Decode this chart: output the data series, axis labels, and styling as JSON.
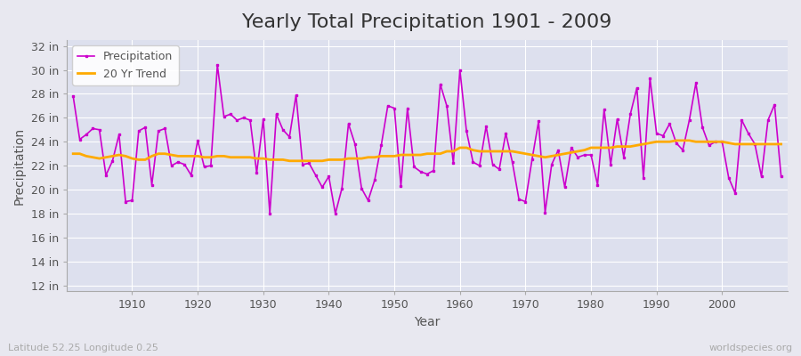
{
  "title": "Yearly Total Precipitation 1901 - 2009",
  "xlabel": "Year",
  "ylabel": "Precipitation",
  "years": [
    1901,
    1902,
    1903,
    1904,
    1905,
    1906,
    1907,
    1908,
    1909,
    1910,
    1911,
    1912,
    1913,
    1914,
    1915,
    1916,
    1917,
    1918,
    1919,
    1920,
    1921,
    1922,
    1923,
    1924,
    1925,
    1926,
    1927,
    1928,
    1929,
    1930,
    1931,
    1932,
    1933,
    1934,
    1935,
    1936,
    1937,
    1938,
    1939,
    1940,
    1941,
    1942,
    1943,
    1944,
    1945,
    1946,
    1947,
    1948,
    1949,
    1950,
    1951,
    1952,
    1953,
    1954,
    1955,
    1956,
    1957,
    1958,
    1959,
    1960,
    1961,
    1962,
    1963,
    1964,
    1965,
    1966,
    1967,
    1968,
    1969,
    1970,
    1971,
    1972,
    1973,
    1974,
    1975,
    1976,
    1977,
    1978,
    1979,
    1980,
    1981,
    1982,
    1983,
    1984,
    1985,
    1986,
    1987,
    1988,
    1989,
    1990,
    1991,
    1992,
    1993,
    1994,
    1995,
    1996,
    1997,
    1998,
    1999,
    2000,
    2001,
    2002,
    2003,
    2004,
    2005,
    2006,
    2007,
    2008,
    2009
  ],
  "precip": [
    27.8,
    24.2,
    24.6,
    25.1,
    25.0,
    21.2,
    22.4,
    24.6,
    19.0,
    19.1,
    24.9,
    25.2,
    20.4,
    24.9,
    25.1,
    22.0,
    22.3,
    22.1,
    21.2,
    24.1,
    21.9,
    22.0,
    30.4,
    26.1,
    26.3,
    25.8,
    26.0,
    25.8,
    21.4,
    25.9,
    18.0,
    26.3,
    25.0,
    24.4,
    27.9,
    22.1,
    22.2,
    21.2,
    20.2,
    21.1,
    18.0,
    20.1,
    25.5,
    23.8,
    20.1,
    19.1,
    20.8,
    23.7,
    27.0,
    26.8,
    20.3,
    26.8,
    21.9,
    21.5,
    21.3,
    21.6,
    28.8,
    27.0,
    22.2,
    30.0,
    24.9,
    22.3,
    22.0,
    25.3,
    22.1,
    21.7,
    24.7,
    22.3,
    19.2,
    19.0,
    22.5,
    25.7,
    18.1,
    22.1,
    23.3,
    20.2,
    23.5,
    22.7,
    22.9,
    22.9,
    20.4,
    26.7,
    22.1,
    25.9,
    22.7,
    26.3,
    28.5,
    21.0,
    29.3,
    24.7,
    24.5,
    25.5,
    23.9,
    23.3,
    25.8,
    28.9,
    25.2,
    23.7,
    24.0,
    24.0,
    21.0,
    19.7,
    25.8,
    24.7,
    23.8,
    21.1,
    25.8,
    27.1,
    21.1
  ],
  "trend": [
    23.0,
    23.0,
    22.8,
    22.7,
    22.6,
    22.7,
    22.8,
    22.9,
    22.8,
    22.6,
    22.5,
    22.5,
    22.8,
    23.0,
    23.0,
    22.9,
    22.8,
    22.8,
    22.8,
    22.8,
    22.7,
    22.7,
    22.8,
    22.8,
    22.7,
    22.7,
    22.7,
    22.7,
    22.6,
    22.6,
    22.5,
    22.5,
    22.5,
    22.4,
    22.4,
    22.4,
    22.4,
    22.4,
    22.4,
    22.5,
    22.5,
    22.5,
    22.6,
    22.6,
    22.6,
    22.7,
    22.7,
    22.8,
    22.8,
    22.8,
    22.9,
    22.9,
    22.9,
    22.9,
    23.0,
    23.0,
    23.0,
    23.2,
    23.2,
    23.5,
    23.5,
    23.3,
    23.2,
    23.2,
    23.2,
    23.2,
    23.2,
    23.2,
    23.1,
    23.0,
    22.9,
    22.8,
    22.7,
    22.8,
    22.9,
    23.0,
    23.1,
    23.2,
    23.3,
    23.5,
    23.5,
    23.5,
    23.5,
    23.6,
    23.6,
    23.6,
    23.7,
    23.8,
    23.9,
    24.0,
    24.0,
    24.0,
    24.1,
    24.1,
    24.1,
    24.0,
    24.0,
    24.0,
    24.0,
    24.0,
    23.9,
    23.8,
    23.8,
    23.8,
    23.8,
    23.8,
    23.8,
    23.8,
    23.8
  ],
  "precip_color": "#cc00cc",
  "trend_color": "#ffaa00",
  "bg_color": "#e8e8f0",
  "plot_bg_color": "#dde0ee",
  "grid_color": "#ffffff",
  "yticks": [
    12,
    14,
    16,
    18,
    20,
    22,
    24,
    26,
    28,
    30,
    32
  ],
  "ylim": [
    11.5,
    32.5
  ],
  "xlim": [
    1900,
    2010
  ],
  "xticks": [
    1910,
    1920,
    1930,
    1940,
    1950,
    1960,
    1970,
    1980,
    1990,
    2000
  ],
  "footnote_left": "Latitude 52.25 Longitude 0.25",
  "footnote_right": "worldspecies.org",
  "title_fontsize": 16,
  "axis_label_fontsize": 10,
  "tick_fontsize": 9,
  "legend_fontsize": 9,
  "footnote_fontsize": 8
}
